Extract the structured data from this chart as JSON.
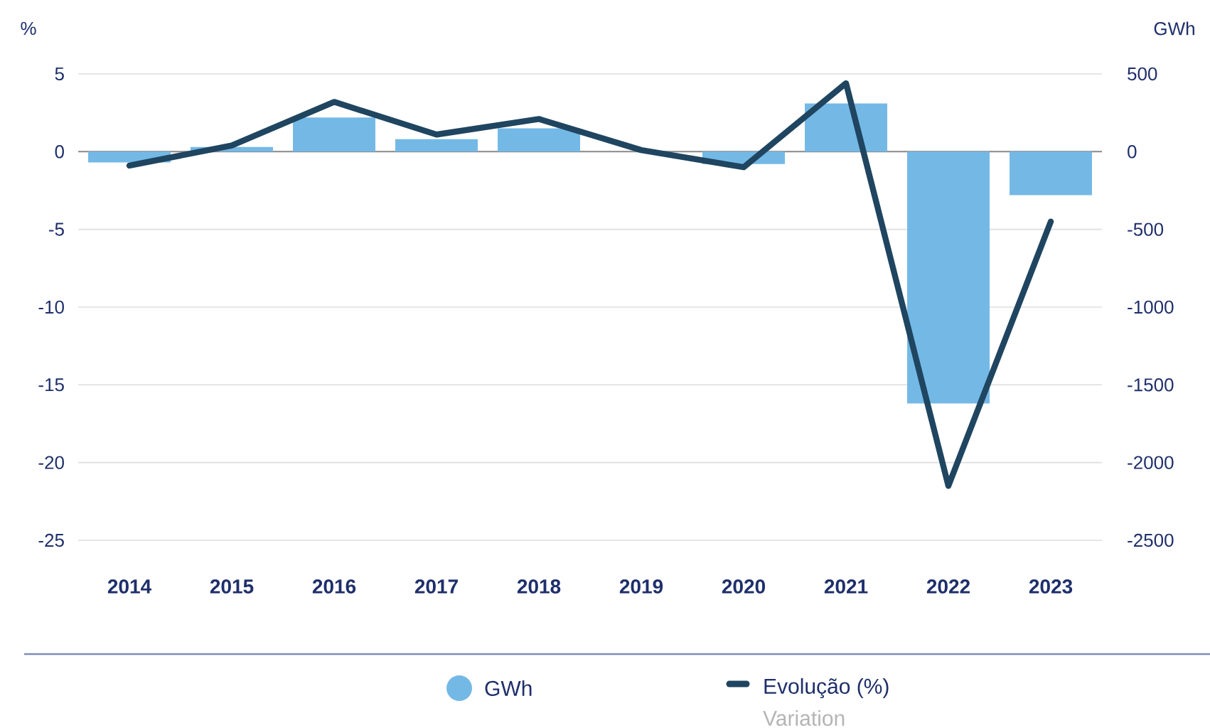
{
  "chart_data": {
    "type": "bar",
    "categories": [
      "2014",
      "2015",
      "2016",
      "2017",
      "2018",
      "2019",
      "2020",
      "2021",
      "2022",
      "2023"
    ],
    "series": [
      {
        "name": "GWh",
        "axis": "y2",
        "color": "#74b9e6",
        "values": [
          -70,
          30,
          220,
          80,
          150,
          0,
          -80,
          310,
          -1620,
          -280
        ]
      },
      {
        "name": "Evolução (%)",
        "type": "line",
        "axis": "y",
        "color": "#1f4560",
        "values": [
          -0.9,
          0.4,
          3.2,
          1.1,
          2.1,
          0.1,
          -1.0,
          4.4,
          -21.5,
          -4.5
        ]
      }
    ],
    "ylabel": "%",
    "y2label": "GWh",
    "ylim": [
      -25,
      5
    ],
    "yticks": [
      -25,
      -20,
      -15,
      -10,
      -5,
      0,
      5
    ],
    "y2lim": [
      -2500,
      500
    ],
    "y2ticks": [
      -2500,
      -2000,
      -1500,
      -1000,
      -500,
      0,
      500
    ],
    "grid": "y",
    "legend": "bottom",
    "annotations": [
      "Variation"
    ]
  }
}
